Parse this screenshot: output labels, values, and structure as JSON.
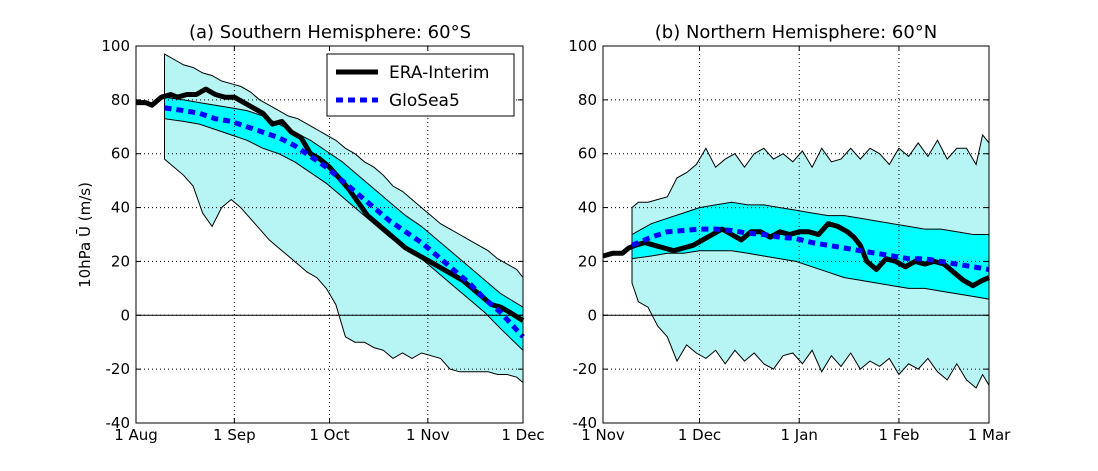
{
  "chart_data": [
    {
      "panel": "a",
      "type": "line",
      "title": "(a) Southern Hemisphere: 60°S",
      "ylabel": "10hPa Ū (m/s)",
      "ylim": [
        -40,
        100
      ],
      "yticks": [
        -40,
        -20,
        0,
        20,
        40,
        60,
        80,
        100
      ],
      "x_range": [
        "1 Aug",
        "1 Dec"
      ],
      "x_ticks": [
        "1 Aug",
        "1 Sep",
        "1 Oct",
        "1 Nov",
        "1 Dec"
      ],
      "x_tick_days": [
        0,
        31,
        61,
        92,
        122
      ],
      "grid": true,
      "zero_line": true,
      "legend": {
        "position": "top-right",
        "entries": [
          "ERA-Interim",
          "GloSea5"
        ]
      },
      "series": [
        {
          "name": "ERA-Interim",
          "style": "solid",
          "color": "#000000",
          "x_days": [
            0,
            3,
            5,
            8,
            11,
            13,
            16,
            19,
            22,
            25,
            28,
            31,
            34,
            37,
            40,
            43,
            46,
            49,
            52,
            55,
            58,
            61,
            64,
            67,
            70,
            73,
            76,
            79,
            82,
            85,
            88,
            91,
            94,
            97,
            100,
            103,
            106,
            109,
            112,
            115,
            118,
            122
          ],
          "values": [
            79,
            79,
            78,
            81,
            82,
            81,
            82,
            82,
            84,
            82,
            81,
            81,
            79,
            77,
            75,
            71,
            72,
            68,
            66,
            60,
            58,
            55,
            51,
            47,
            42,
            37,
            34,
            31,
            28,
            25,
            23,
            21,
            19,
            17,
            15,
            13,
            10,
            7,
            4,
            3,
            1,
            -2
          ]
        },
        {
          "name": "GloSea5",
          "style": "dashed",
          "color": "#0000ff",
          "x_days": [
            9,
            15,
            20,
            25,
            30,
            35,
            40,
            45,
            50,
            55,
            60,
            65,
            70,
            75,
            80,
            85,
            90,
            95,
            100,
            105,
            110,
            115,
            122
          ],
          "values": [
            77,
            76,
            75,
            73,
            72,
            70,
            68,
            66,
            63,
            59,
            55,
            50,
            45,
            40,
            35,
            31,
            27,
            22,
            17,
            12,
            6,
            1,
            -8
          ]
        }
      ],
      "bands": [
        {
          "name": "outer range",
          "color": "#b7f5f5",
          "x_days": [
            9,
            12,
            15,
            18,
            21,
            24,
            27,
            30,
            33,
            36,
            39,
            42,
            45,
            48,
            51,
            54,
            57,
            60,
            63,
            66,
            69,
            72,
            75,
            78,
            81,
            84,
            87,
            90,
            93,
            96,
            99,
            102,
            105,
            108,
            111,
            114,
            117,
            120,
            122
          ],
          "upper": [
            97,
            95,
            93,
            92,
            90,
            89,
            87,
            86,
            85,
            83,
            80,
            78,
            76,
            74,
            73,
            71,
            69,
            67,
            65,
            62,
            60,
            57,
            55,
            52,
            48,
            46,
            43,
            40,
            37,
            34,
            32,
            30,
            28,
            26,
            24,
            21,
            19,
            17,
            14
          ],
          "lower": [
            58,
            55,
            52,
            48,
            38,
            33,
            40,
            43,
            40,
            36,
            32,
            28,
            25,
            22,
            19,
            16,
            14,
            10,
            4,
            -8,
            -10,
            -10,
            -12,
            -13,
            -16,
            -14,
            -16,
            -14,
            -15,
            -16,
            -20,
            -21,
            -21,
            -21,
            -21,
            -22,
            -22,
            -23,
            -25
          ]
        },
        {
          "name": "inner range",
          "color": "#00ffff",
          "x_days": [
            9,
            15,
            20,
            25,
            30,
            35,
            40,
            45,
            50,
            55,
            60,
            65,
            70,
            75,
            80,
            85,
            90,
            95,
            100,
            105,
            110,
            115,
            122
          ],
          "upper": [
            81,
            80,
            79,
            78,
            77,
            76,
            74,
            71,
            68,
            65,
            61,
            57,
            52,
            47,
            42,
            37,
            33,
            28,
            23,
            18,
            13,
            8,
            3
          ],
          "lower": [
            73,
            72,
            71,
            69,
            67,
            65,
            62,
            60,
            57,
            53,
            49,
            44,
            39,
            34,
            29,
            25,
            21,
            16,
            11,
            6,
            1,
            -5,
            -13
          ]
        }
      ]
    },
    {
      "panel": "b",
      "type": "line",
      "title": "(b) Northern Hemisphere: 60°N",
      "ylim": [
        -40,
        100
      ],
      "yticks": [
        -40,
        -20,
        0,
        20,
        40,
        60,
        80,
        100
      ],
      "x_range": [
        "1 Nov",
        "1 Mar"
      ],
      "x_ticks": [
        "1 Nov",
        "1 Dec",
        "1 Jan",
        "1 Feb",
        "1 Mar"
      ],
      "x_tick_days": [
        0,
        30,
        61,
        92,
        120
      ],
      "grid": true,
      "zero_line": true,
      "series": [
        {
          "name": "ERA-Interim",
          "style": "solid",
          "color": "#000000",
          "x_days": [
            0,
            3,
            6,
            8,
            10,
            13,
            16,
            19,
            22,
            25,
            28,
            31,
            34,
            37,
            40,
            43,
            46,
            49,
            52,
            55,
            58,
            61,
            64,
            67,
            70,
            73,
            76,
            78,
            80,
            82,
            85,
            88,
            91,
            94,
            97,
            100,
            103,
            106,
            109,
            112,
            115,
            118,
            120
          ],
          "values": [
            22,
            23,
            23,
            25,
            26,
            27,
            26,
            25,
            24,
            25,
            26,
            28,
            30,
            32,
            30,
            28,
            31,
            31,
            29,
            31,
            30,
            31,
            31,
            30,
            34,
            33,
            31,
            29,
            26,
            20,
            17,
            21,
            20,
            18,
            20,
            19,
            20,
            19,
            16,
            13,
            11,
            13,
            14
          ]
        },
        {
          "name": "GloSea5",
          "style": "dashed",
          "color": "#0000ff",
          "x_days": [
            9,
            15,
            20,
            25,
            30,
            35,
            40,
            45,
            50,
            55,
            60,
            65,
            70,
            75,
            80,
            85,
            90,
            95,
            100,
            105,
            110,
            115,
            120
          ],
          "values": [
            26,
            29,
            31,
            31.5,
            32,
            32,
            31.5,
            30.5,
            30,
            29,
            28.5,
            27,
            26,
            25,
            24,
            23,
            22,
            21,
            21,
            20,
            19,
            18,
            17
          ]
        }
      ],
      "bands": [
        {
          "name": "outer range",
          "color": "#b7f5f5",
          "x_days": [
            9,
            11,
            14,
            17,
            20,
            23,
            26,
            29,
            32,
            35,
            38,
            41,
            44,
            47,
            50,
            53,
            56,
            59,
            62,
            65,
            68,
            71,
            74,
            77,
            80,
            83,
            86,
            89,
            92,
            95,
            98,
            101,
            104,
            107,
            110,
            113,
            116,
            118,
            120
          ],
          "upper": [
            40,
            42,
            42,
            43,
            44,
            51,
            53,
            56,
            62,
            55,
            58,
            60,
            55,
            60,
            62,
            58,
            60,
            57,
            61,
            55,
            62,
            57,
            58,
            62,
            58,
            62,
            60,
            56,
            62,
            59,
            64,
            59,
            65,
            58,
            62,
            62,
            56,
            67,
            64
          ],
          "lower": [
            12,
            5,
            3,
            -4,
            -8,
            -17,
            -11,
            -14,
            -16,
            -13,
            -18,
            -13,
            -17,
            -14,
            -18,
            -20,
            -15,
            -14,
            -18,
            -13,
            -21,
            -15,
            -19,
            -14,
            -20,
            -17,
            -19,
            -16,
            -22,
            -18,
            -20,
            -16,
            -21,
            -24,
            -18,
            -24,
            -27,
            -22,
            -26
          ]
        },
        {
          "name": "inner range",
          "color": "#00ffff",
          "x_days": [
            9,
            15,
            20,
            25,
            30,
            35,
            40,
            45,
            50,
            55,
            60,
            65,
            70,
            75,
            80,
            85,
            90,
            95,
            100,
            105,
            110,
            115,
            120
          ],
          "upper": [
            30,
            34,
            36,
            38,
            40,
            41,
            42,
            41,
            41,
            40,
            39,
            38,
            37,
            37,
            36,
            35,
            34,
            33,
            32,
            32,
            31,
            30,
            30
          ],
          "lower": [
            21,
            22,
            23,
            23,
            24,
            24,
            24,
            23,
            22,
            21,
            20,
            18,
            16,
            14,
            13,
            12,
            11,
            10,
            10,
            9,
            8,
            7,
            6
          ]
        }
      ]
    }
  ]
}
